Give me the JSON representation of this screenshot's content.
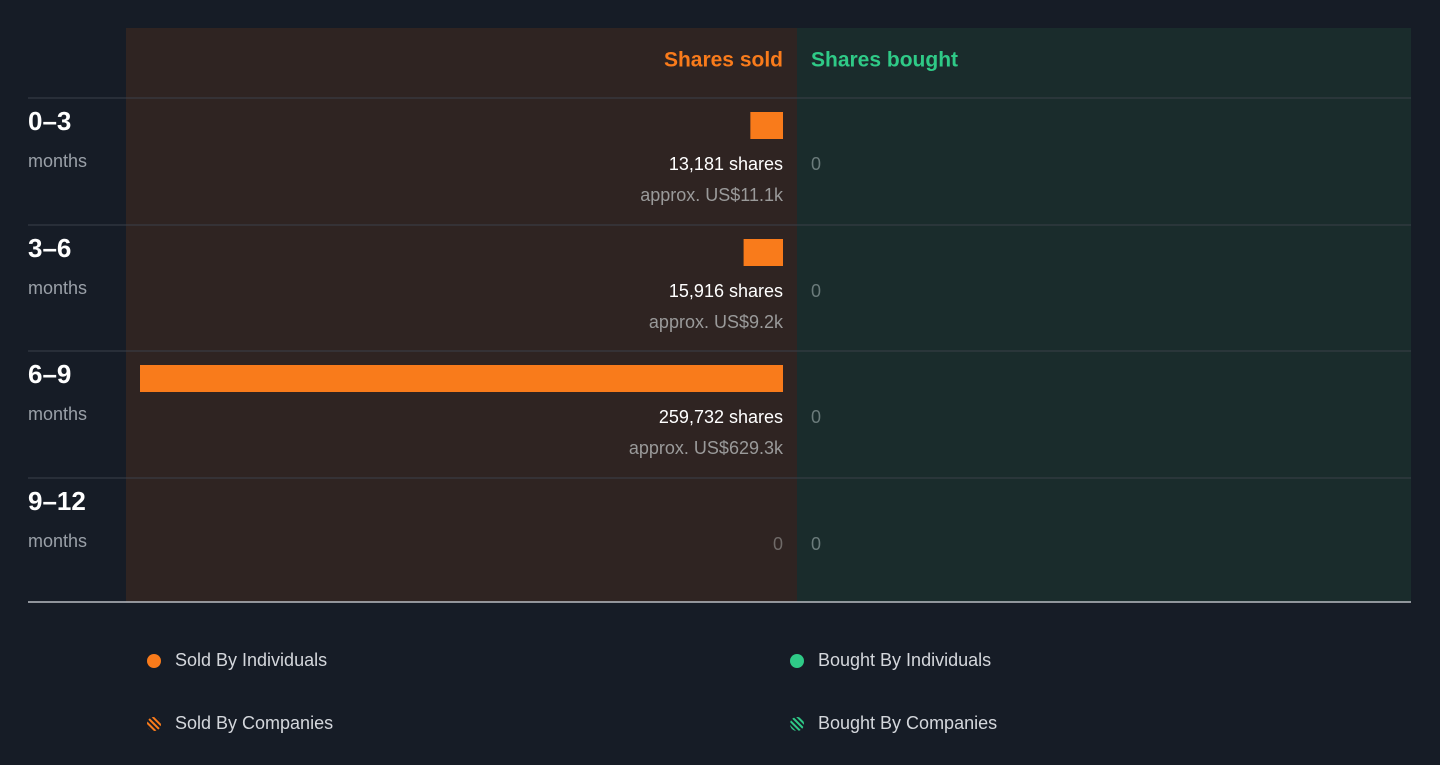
{
  "chart_data": {
    "type": "bar",
    "orientation": "horizontal",
    "categories": [
      "0–3",
      "3–6",
      "6–9",
      "9–12"
    ],
    "category_sublabels": [
      "months",
      "months",
      "months",
      "months"
    ],
    "series": [
      {
        "name": "Sold By Individuals",
        "header": "Shares sold",
        "color": "#f97b1b",
        "values": [
          13181,
          15916,
          259732,
          0
        ],
        "value_labels": [
          "13,181 shares",
          "15,916 shares",
          "259,732 shares",
          "0"
        ],
        "approx_values": [
          11100,
          9200,
          629300,
          null
        ],
        "approx_labels": [
          "approx. US$11.1k",
          "approx. US$9.2k",
          "approx. US$629.3k",
          null
        ]
      },
      {
        "name": "Bought By Individuals",
        "header": "Shares bought",
        "color": "#2fca87",
        "values": [
          0,
          0,
          0,
          0
        ]
      }
    ],
    "company_legend": [
      {
        "name": "Sold By Companies",
        "color": "#f97b1b",
        "pattern": "hatched"
      },
      {
        "name": "Bought By Companies",
        "color": "#2fca87",
        "pattern": "hatched"
      }
    ]
  }
}
